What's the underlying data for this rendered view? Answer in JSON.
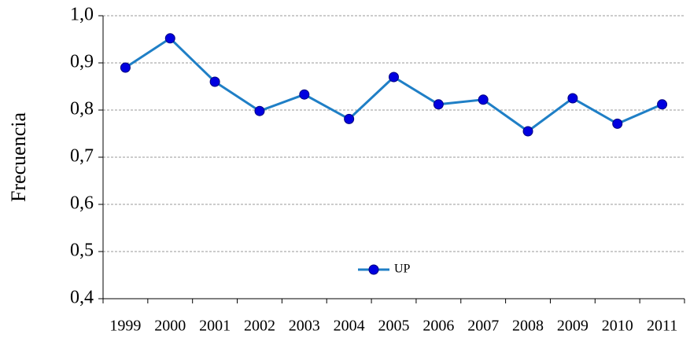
{
  "chart_data": {
    "type": "line",
    "y_label": "Frecuencia",
    "categories": [
      "1999",
      "2000",
      "2001",
      "2002",
      "2003",
      "2004",
      "2005",
      "2006",
      "2007",
      "2008",
      "2009",
      "2010",
      "2011"
    ],
    "series": [
      {
        "name": "UP",
        "color": "#1f7fc6",
        "marker_color": "#0000e0",
        "values": [
          0.89,
          0.952,
          0.86,
          0.798,
          0.833,
          0.781,
          0.87,
          0.812,
          0.822,
          0.755,
          0.825,
          0.771,
          0.812
        ]
      }
    ],
    "ylim": [
      0.4,
      1.0
    ],
    "yticks": [
      {
        "value": 0.4,
        "label": "0,4"
      },
      {
        "value": 0.5,
        "label": "0,5"
      },
      {
        "value": 0.6,
        "label": "0,6"
      },
      {
        "value": 0.7,
        "label": "0,7"
      },
      {
        "value": 0.8,
        "label": "0,8"
      },
      {
        "value": 0.9,
        "label": "0,9"
      },
      {
        "value": 1.0,
        "label": "1,0"
      }
    ],
    "grid": true,
    "legend": "lower center"
  }
}
